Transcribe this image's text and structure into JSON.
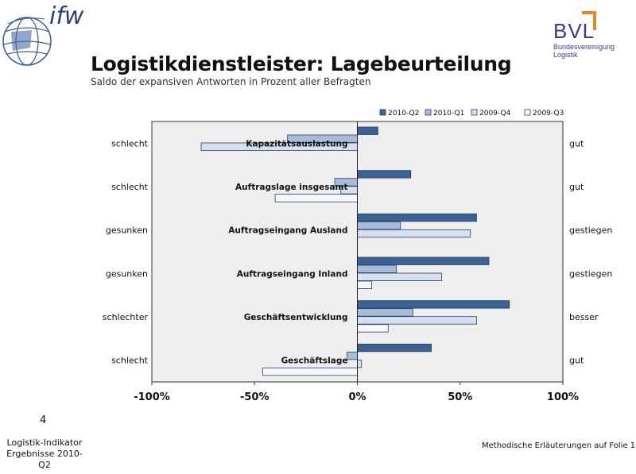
{
  "header": {
    "logo_left_text": "ifw",
    "logo_right_text": "BVL",
    "logo_right_sub1": "Bundesvereinigung",
    "logo_right_sub2": "Logistik",
    "title": "Logistikdienstleister: Lagebeurteilung",
    "subtitle": "Saldo der expansiven Antworten in Prozent aller Befragten"
  },
  "footer": {
    "slide_number": "4",
    "left_line1": "Logistik-Indikator",
    "left_line2": "Ergebnisse 2010-Q2",
    "right": "Methodische Erläuterungen auf Folie 10"
  },
  "colors": {
    "2010-Q2": "#3c6294",
    "2010-Q1": "#a7bcd9",
    "2009-Q4": "#d6e1ef",
    "2009-Q3": "#f4f7fb",
    "plot_bg": "#eeeeee"
  },
  "chart_data": {
    "type": "bar",
    "orientation": "horizontal",
    "categories": [
      "Kapazitätsauslastung",
      "Auftragslage insgesamt",
      "Auftragseingang Ausland",
      "Auftragseingang Inland",
      "Geschäftsentwicklung",
      "Geschäftslage"
    ],
    "left_labels": [
      "schlecht",
      "schlecht",
      "gesunken",
      "gesunken",
      "schlechter",
      "schlecht"
    ],
    "right_labels": [
      "gut",
      "gut",
      "gestiegen",
      "gestiegen",
      "besser",
      "gut"
    ],
    "series": [
      {
        "name": "2010-Q2",
        "values": [
          10,
          26,
          58,
          64,
          74,
          36
        ]
      },
      {
        "name": "2010-Q1",
        "values": [
          -34,
          -11,
          21,
          19,
          27,
          -5
        ]
      },
      {
        "name": "2009-Q4",
        "values": [
          -76,
          -8,
          55,
          41,
          58,
          2
        ]
      },
      {
        "name": "2009-Q3",
        "values": [
          null,
          -40,
          null,
          7,
          15,
          -46
        ]
      }
    ],
    "xlim": [
      -100,
      100
    ],
    "xticks": [
      "-100%",
      "-50%",
      "0%",
      "50%",
      "100%"
    ],
    "xtick_values": [
      -100,
      -50,
      0,
      50,
      100
    ],
    "legend_position": "top",
    "grid": false
  }
}
